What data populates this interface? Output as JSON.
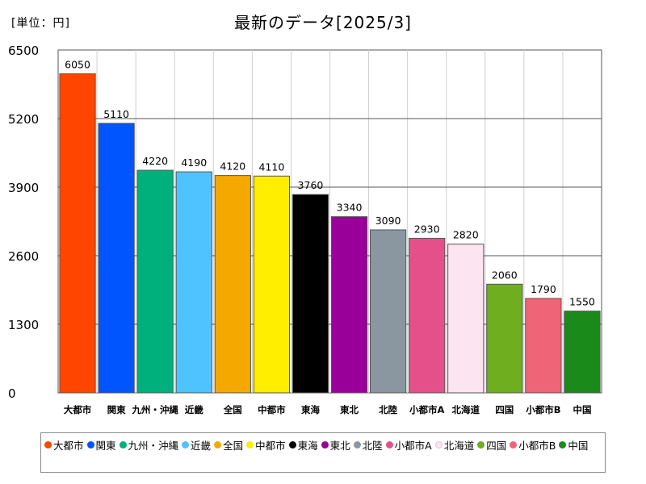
{
  "chart_data": {
    "type": "bar",
    "title": "最新のデータ[2025/3]",
    "unit_label": "[単位：円]",
    "categories": [
      "大都市",
      "関東",
      "九州・沖縄",
      "近畿",
      "全国",
      "中都市",
      "東海",
      "東北",
      "北陸",
      "小都市A",
      "北海道",
      "四国",
      "小都市B",
      "中国"
    ],
    "values": [
      6050,
      5110,
      4220,
      4190,
      4120,
      4110,
      3760,
      3340,
      3090,
      2930,
      2820,
      2060,
      1790,
      1550
    ],
    "colors": [
      "#ff4500",
      "#0055ff",
      "#00b07c",
      "#4fc3ff",
      "#f5a800",
      "#ffee00",
      "#000000",
      "#990099",
      "#8a96a0",
      "#e5508a",
      "#fce4f0",
      "#6fae1e",
      "#f06478",
      "#1a8a1a"
    ],
    "yticks": [
      0,
      1300,
      2600,
      3900,
      5200,
      6500
    ],
    "ylim": [
      0,
      6500
    ],
    "xlabel": "",
    "ylabel": "",
    "grid": true,
    "legend_position": "bottom"
  }
}
